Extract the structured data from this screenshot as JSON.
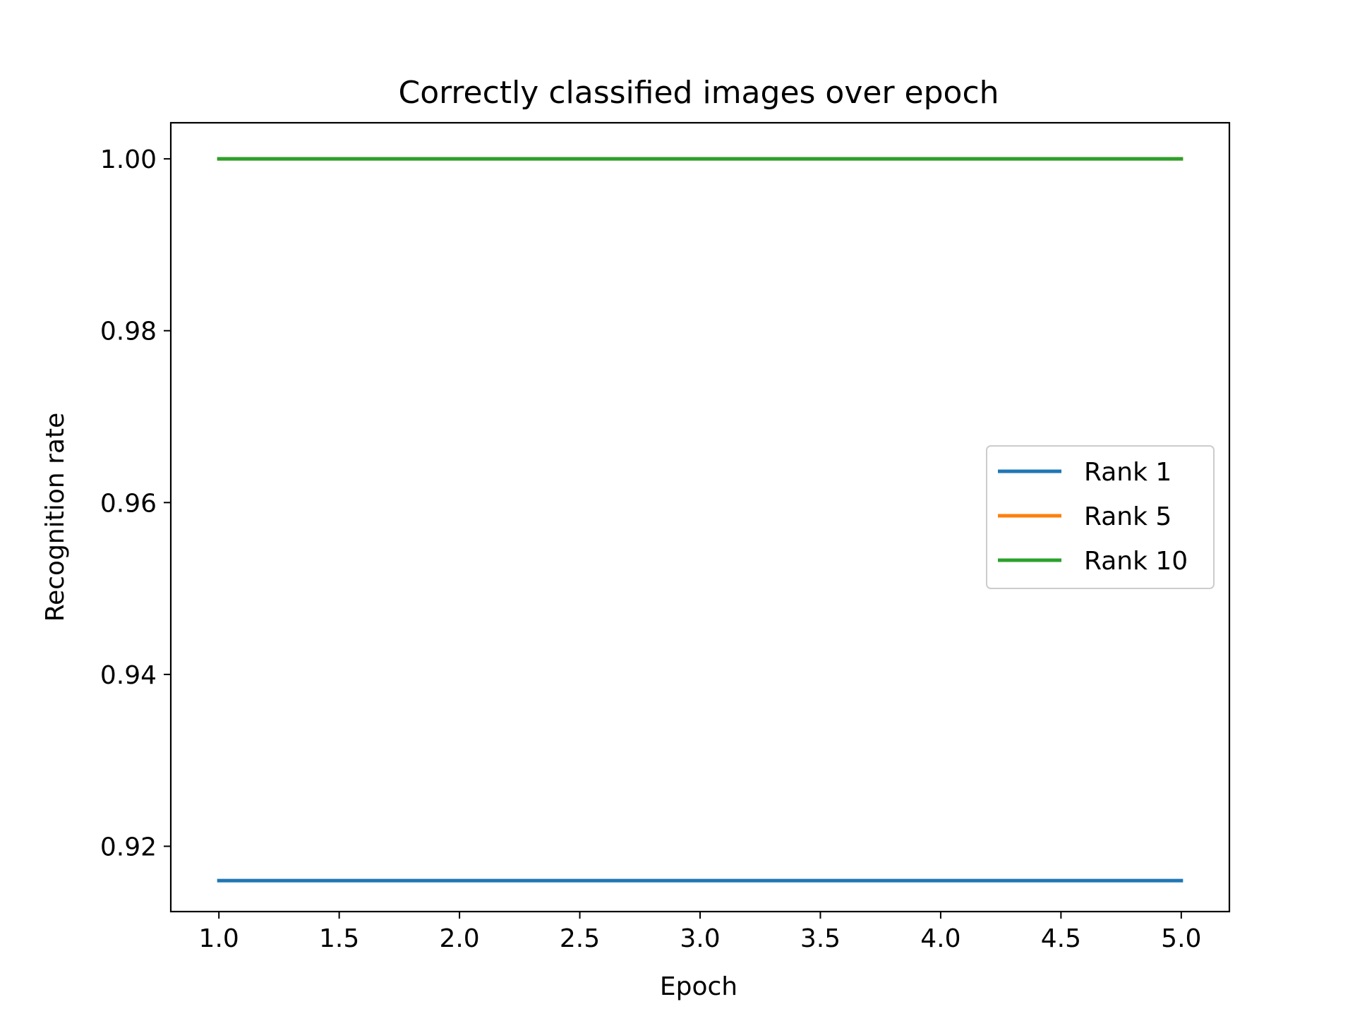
{
  "chart_data": {
    "type": "line",
    "title": "Correctly classified images over epoch",
    "xlabel": "Epoch",
    "ylabel": "Recognition rate",
    "x": [
      1,
      2,
      3,
      4,
      5
    ],
    "xlim": [
      0.8,
      5.2
    ],
    "ylim": [
      0.9124,
      1.0042
    ],
    "xticks": [
      1.0,
      1.5,
      2.0,
      2.5,
      3.0,
      3.5,
      4.0,
      4.5,
      5.0
    ],
    "xtick_labels": [
      "1.0",
      "1.5",
      "2.0",
      "2.5",
      "3.0",
      "3.5",
      "4.0",
      "4.5",
      "5.0"
    ],
    "yticks": [
      0.92,
      0.94,
      0.96,
      0.98,
      1.0
    ],
    "ytick_labels": [
      "0.92",
      "0.94",
      "0.96",
      "0.98",
      "1.00"
    ],
    "grid": false,
    "legend_position": "center-right",
    "series": [
      {
        "name": "Rank 1",
        "color": "#1f77b4",
        "values": [
          0.916,
          0.916,
          0.916,
          0.916,
          0.916
        ]
      },
      {
        "name": "Rank 5",
        "color": "#ff7f0e",
        "values": [
          1.0,
          1.0,
          1.0,
          1.0,
          1.0
        ]
      },
      {
        "name": "Rank 10",
        "color": "#2ca02c",
        "values": [
          1.0,
          1.0,
          1.0,
          1.0,
          1.0
        ]
      }
    ]
  }
}
